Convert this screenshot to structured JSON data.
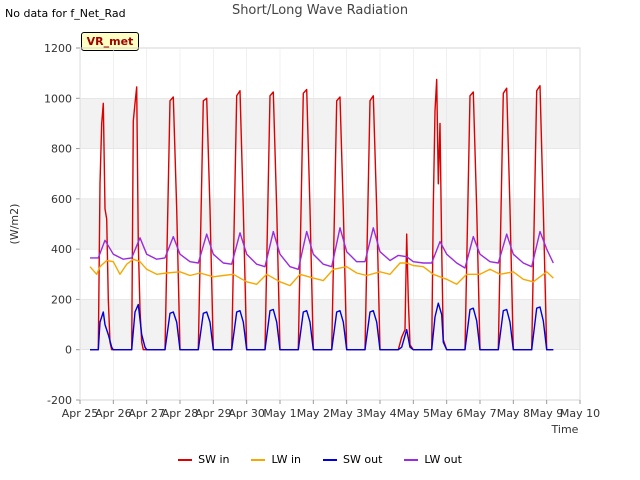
{
  "header": {
    "no_data_note": "No data for f_Net_Rad",
    "site_tag": "VR_met"
  },
  "chart_data": {
    "type": "line",
    "title": "Short/Long Wave Radiation",
    "xlabel": "Time",
    "ylabel": "(W/m2)",
    "ylim": [
      -200,
      1200
    ],
    "yticks": [
      -200,
      0,
      200,
      400,
      600,
      800,
      1000,
      1200
    ],
    "xlim_days": [
      0,
      15
    ],
    "xtick_labels": [
      "Apr 25",
      "Apr 26",
      "Apr 27",
      "Apr 28",
      "Apr 29",
      "Apr 30",
      "May 1",
      "May 2",
      "May 3",
      "May 4",
      "May 5",
      "May 6",
      "May 7",
      "May 8",
      "May 9",
      "May 10"
    ],
    "grid": true,
    "legend_position": "bottom",
    "series": [
      {
        "name": "SW in",
        "color": "#dd0000",
        "x": [
          0.3,
          0.55,
          0.6,
          0.65,
          0.7,
          0.75,
          0.8,
          0.85,
          0.9,
          0.95,
          1.0,
          1.3,
          1.55,
          1.6,
          1.65,
          1.7,
          1.75,
          1.8,
          1.85,
          1.9,
          1.95,
          2.0,
          2.3,
          2.55,
          2.7,
          2.8,
          2.9,
          3.0,
          3.3,
          3.55,
          3.7,
          3.8,
          3.9,
          4.0,
          4.3,
          4.55,
          4.7,
          4.8,
          4.9,
          5.0,
          5.3,
          5.55,
          5.7,
          5.8,
          5.9,
          6.0,
          6.3,
          6.55,
          6.7,
          6.8,
          6.9,
          7.0,
          7.3,
          7.55,
          7.7,
          7.8,
          7.9,
          8.0,
          8.3,
          8.55,
          8.7,
          8.8,
          8.9,
          9.0,
          9.3,
          9.55,
          9.65,
          9.75,
          9.8,
          9.85,
          9.9,
          10.0,
          10.3,
          10.55,
          10.6,
          10.65,
          10.7,
          10.75,
          10.8,
          10.85,
          10.9,
          11.0,
          11.3,
          11.55,
          11.7,
          11.8,
          11.9,
          12.0,
          12.3,
          12.55,
          12.7,
          12.8,
          12.9,
          13.0,
          13.3,
          13.55,
          13.7,
          13.8,
          13.9,
          14.0,
          14.2
        ],
        "y": [
          0,
          0,
          660,
          900,
          980,
          560,
          520,
          200,
          30,
          0,
          0,
          0,
          0,
          910,
          980,
          1045,
          420,
          160,
          30,
          0,
          0,
          0,
          0,
          0,
          990,
          1005,
          560,
          0,
          0,
          0,
          990,
          1000,
          560,
          0,
          0,
          0,
          1010,
          1030,
          560,
          0,
          0,
          0,
          1010,
          1025,
          560,
          0,
          0,
          0,
          1020,
          1035,
          560,
          0,
          0,
          0,
          990,
          1005,
          560,
          0,
          0,
          0,
          990,
          1010,
          560,
          0,
          0,
          0,
          50,
          80,
          460,
          200,
          20,
          0,
          0,
          0,
          570,
          950,
          1075,
          660,
          900,
          400,
          40,
          0,
          0,
          0,
          1010,
          1025,
          560,
          0,
          0,
          0,
          1020,
          1040,
          560,
          0,
          0,
          0,
          1030,
          1050,
          560,
          0,
          0
        ]
      },
      {
        "name": "LW in",
        "color": "#f5a800",
        "x": [
          0.3,
          0.5,
          0.6,
          0.8,
          1.0,
          1.2,
          1.4,
          1.6,
          1.8,
          2.0,
          2.3,
          2.6,
          3.0,
          3.3,
          3.6,
          4.0,
          4.3,
          4.6,
          5.0,
          5.3,
          5.6,
          6.0,
          6.3,
          6.6,
          7.0,
          7.3,
          7.6,
          8.0,
          8.3,
          8.6,
          9.0,
          9.3,
          9.6,
          9.8,
          10.0,
          10.3,
          10.6,
          11.0,
          11.3,
          11.6,
          12.0,
          12.3,
          12.6,
          13.0,
          13.3,
          13.6,
          14.0,
          14.2
        ],
        "y": [
          330,
          300,
          330,
          355,
          350,
          300,
          340,
          360,
          350,
          320,
          300,
          305,
          310,
          295,
          305,
          290,
          295,
          300,
          270,
          260,
          300,
          270,
          255,
          300,
          285,
          275,
          320,
          330,
          305,
          295,
          310,
          300,
          345,
          345,
          335,
          330,
          300,
          280,
          260,
          300,
          300,
          320,
          300,
          310,
          280,
          270,
          310,
          285
        ]
      },
      {
        "name": "SW out",
        "color": "#0000dd",
        "x": [
          0.3,
          0.55,
          0.6,
          0.7,
          0.75,
          0.85,
          0.95,
          1.0,
          1.3,
          1.55,
          1.65,
          1.75,
          1.85,
          1.95,
          2.0,
          2.3,
          2.55,
          2.7,
          2.8,
          2.9,
          3.0,
          3.3,
          3.55,
          3.7,
          3.8,
          3.9,
          4.0,
          4.3,
          4.55,
          4.7,
          4.8,
          4.9,
          5.0,
          5.3,
          5.55,
          5.7,
          5.8,
          5.9,
          6.0,
          6.3,
          6.55,
          6.7,
          6.8,
          6.9,
          7.0,
          7.3,
          7.55,
          7.7,
          7.8,
          7.9,
          8.0,
          8.3,
          8.55,
          8.7,
          8.8,
          8.9,
          9.0,
          9.3,
          9.55,
          9.65,
          9.8,
          9.9,
          10.0,
          10.3,
          10.55,
          10.65,
          10.75,
          10.85,
          10.9,
          11.0,
          11.3,
          11.55,
          11.7,
          11.8,
          11.9,
          12.0,
          12.3,
          12.55,
          12.7,
          12.8,
          12.9,
          13.0,
          13.3,
          13.55,
          13.7,
          13.8,
          13.9,
          14.0,
          14.2
        ],
        "y": [
          0,
          0,
          110,
          150,
          100,
          60,
          10,
          0,
          0,
          0,
          150,
          180,
          60,
          10,
          0,
          0,
          0,
          145,
          150,
          110,
          0,
          0,
          0,
          145,
          150,
          110,
          0,
          0,
          0,
          150,
          155,
          110,
          0,
          0,
          0,
          155,
          160,
          110,
          0,
          0,
          0,
          150,
          155,
          110,
          0,
          0,
          0,
          150,
          155,
          110,
          0,
          0,
          0,
          150,
          155,
          110,
          0,
          0,
          0,
          10,
          80,
          10,
          0,
          0,
          0,
          130,
          185,
          140,
          30,
          0,
          0,
          0,
          160,
          165,
          115,
          0,
          0,
          0,
          155,
          160,
          110,
          0,
          0,
          0,
          165,
          170,
          115,
          0,
          0
        ]
      },
      {
        "name": "LW out",
        "color": "#9a2be0",
        "x": [
          0.3,
          0.55,
          0.75,
          1.0,
          1.3,
          1.55,
          1.8,
          2.0,
          2.3,
          2.55,
          2.8,
          3.0,
          3.3,
          3.55,
          3.8,
          4.0,
          4.3,
          4.55,
          4.8,
          5.0,
          5.3,
          5.55,
          5.8,
          6.0,
          6.3,
          6.55,
          6.8,
          7.0,
          7.3,
          7.55,
          7.8,
          8.0,
          8.3,
          8.55,
          8.8,
          9.0,
          9.3,
          9.55,
          9.8,
          10.0,
          10.3,
          10.55,
          10.8,
          11.0,
          11.3,
          11.55,
          11.8,
          12.0,
          12.3,
          12.55,
          12.8,
          13.0,
          13.3,
          13.55,
          13.8,
          14.0,
          14.2
        ],
        "y": [
          365,
          365,
          435,
          380,
          360,
          365,
          445,
          380,
          360,
          365,
          450,
          380,
          350,
          345,
          460,
          380,
          345,
          340,
          465,
          380,
          340,
          330,
          470,
          380,
          330,
          320,
          470,
          380,
          340,
          330,
          485,
          390,
          350,
          350,
          485,
          390,
          355,
          375,
          370,
          350,
          345,
          345,
          430,
          380,
          345,
          325,
          450,
          380,
          350,
          345,
          460,
          380,
          345,
          330,
          470,
          400,
          345
        ]
      }
    ]
  }
}
